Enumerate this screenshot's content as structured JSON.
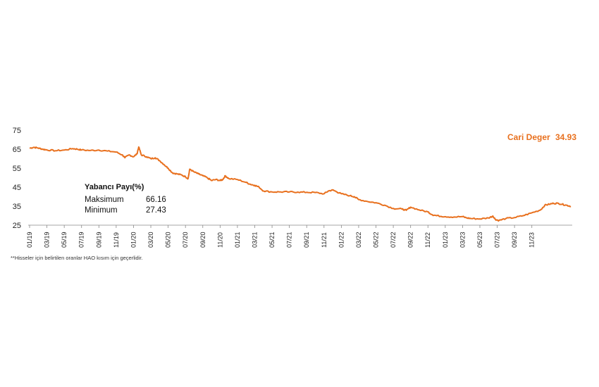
{
  "chart_data": {
    "type": "line",
    "title": "",
    "xlabel": "",
    "ylabel": "",
    "ylim": [
      25,
      75
    ],
    "yticks": [
      25,
      35,
      45,
      55,
      65,
      75
    ],
    "grid": false,
    "series": [
      {
        "name": "Yabancı Payı(%)",
        "color": "#e8701e",
        "points": [
          [
            0,
            65.5
          ],
          [
            0.5,
            66.0
          ],
          [
            1,
            65.6
          ],
          [
            1.5,
            65.0
          ],
          [
            2,
            64.6
          ],
          [
            3,
            64.2
          ],
          [
            4,
            64.5
          ],
          [
            5,
            65.3
          ],
          [
            5.5,
            65.0
          ],
          [
            6,
            64.6
          ],
          [
            7,
            64.3
          ],
          [
            8,
            64.5
          ],
          [
            9,
            64.0
          ],
          [
            10,
            63.5
          ],
          [
            10.7,
            62.0
          ],
          [
            11,
            60.5
          ],
          [
            11.5,
            62.0
          ],
          [
            12,
            61.0
          ],
          [
            12.4,
            62.5
          ],
          [
            12.6,
            66.16
          ],
          [
            12.9,
            62.0
          ],
          [
            13.5,
            61.0
          ],
          [
            14,
            60.0
          ],
          [
            14.5,
            60.5
          ],
          [
            15,
            59.0
          ],
          [
            15.5,
            57.0
          ],
          [
            16,
            55.0
          ],
          [
            16.5,
            52.5
          ],
          [
            17,
            52.0
          ],
          [
            17.5,
            51.5
          ],
          [
            18,
            50.5
          ],
          [
            18.3,
            49.5
          ],
          [
            18.5,
            54.5
          ],
          [
            19,
            53.0
          ],
          [
            19.5,
            52.0
          ],
          [
            20,
            51.0
          ],
          [
            20.5,
            50.0
          ],
          [
            21,
            48.5
          ],
          [
            21.5,
            49.0
          ],
          [
            22,
            48.5
          ],
          [
            22.3,
            49.0
          ],
          [
            22.6,
            51.0
          ],
          [
            23,
            49.5
          ],
          [
            24,
            49.0
          ],
          [
            25,
            47.5
          ],
          [
            25.5,
            46.5
          ],
          [
            26,
            46.0
          ],
          [
            26.5,
            45.0
          ],
          [
            27,
            43.0
          ],
          [
            28,
            42.5
          ],
          [
            29,
            42.5
          ],
          [
            30,
            42.5
          ],
          [
            31,
            42.4
          ],
          [
            32,
            42.3
          ],
          [
            33,
            42.2
          ],
          [
            34,
            41.5
          ],
          [
            34.5,
            43.0
          ],
          [
            35,
            43.5
          ],
          [
            35.5,
            42.5
          ],
          [
            36,
            41.5
          ],
          [
            37,
            40.5
          ],
          [
            37.5,
            40.0
          ],
          [
            38,
            38.5
          ],
          [
            39,
            37.5
          ],
          [
            40,
            36.8
          ],
          [
            41,
            35.5
          ],
          [
            42,
            33.8
          ],
          [
            43,
            33.5
          ],
          [
            43.5,
            32.8
          ],
          [
            44,
            34.5
          ],
          [
            45,
            33.0
          ],
          [
            46,
            32.0
          ],
          [
            46.5,
            30.5
          ],
          [
            47,
            30.0
          ],
          [
            48,
            29.5
          ],
          [
            49,
            29.3
          ],
          [
            50,
            29.5
          ],
          [
            50.5,
            28.8
          ],
          [
            51,
            28.5
          ],
          [
            52,
            28.3
          ],
          [
            53,
            28.8
          ],
          [
            53.5,
            29.8
          ],
          [
            53.8,
            28.0
          ],
          [
            54.2,
            27.43
          ],
          [
            55,
            28.5
          ],
          [
            56,
            29.0
          ],
          [
            57,
            30.0
          ],
          [
            58,
            31.5
          ],
          [
            59,
            33.0
          ],
          [
            59.5,
            35.5
          ],
          [
            60,
            36.0
          ],
          [
            60.5,
            36.5
          ],
          [
            61,
            36.5
          ],
          [
            61.5,
            36.0
          ],
          [
            62,
            35.5
          ],
          [
            62.5,
            34.93
          ]
        ]
      }
    ],
    "x_domain": [
      0,
      62.5
    ],
    "x_ticks": [
      {
        "label": "01/19",
        "x": 0
      },
      {
        "label": "03/19",
        "x": 2
      },
      {
        "label": "05/19",
        "x": 4
      },
      {
        "label": "07/19",
        "x": 6
      },
      {
        "label": "09/19",
        "x": 8
      },
      {
        "label": "11/19",
        "x": 10
      },
      {
        "label": "01/20",
        "x": 12
      },
      {
        "label": "03/20",
        "x": 14
      },
      {
        "label": "05/20",
        "x": 16
      },
      {
        "label": "07/20",
        "x": 18
      },
      {
        "label": "09/20",
        "x": 20
      },
      {
        "label": "11/20",
        "x": 22
      },
      {
        "label": "01/21",
        "x": 24
      },
      {
        "label": "03/21",
        "x": 26
      },
      {
        "label": "05/21",
        "x": 28
      },
      {
        "label": "07/21",
        "x": 30
      },
      {
        "label": "09/21",
        "x": 32
      },
      {
        "label": "11/21",
        "x": 34
      },
      {
        "label": "01/22",
        "x": 36
      },
      {
        "label": "03/22",
        "x": 38
      },
      {
        "label": "05/22",
        "x": 40
      },
      {
        "label": "07/22",
        "x": 42
      },
      {
        "label": "09/22",
        "x": 44
      },
      {
        "label": "11/22",
        "x": 46
      },
      {
        "label": "01/23",
        "x": 48
      },
      {
        "label": "03/23",
        "x": 50
      },
      {
        "label": "05/23",
        "x": 52
      },
      {
        "label": "07/23",
        "x": 54
      },
      {
        "label": "09/23",
        "x": 56
      },
      {
        "label": "11/23",
        "x": 58
      }
    ],
    "x_ticks_note": "x values are months since 01/19"
  },
  "info_box": {
    "title": "Yabancı Payı(%)",
    "max_label": "Maksimum",
    "max_value": "66.16",
    "min_label": "Minimum",
    "min_value": "27.43"
  },
  "current": {
    "label": "Cari Deger",
    "value": "34.93",
    "color": "#e8701e"
  },
  "footnote": "**Hisseler için belirtilen oranlar HAO kısım için geçerlidir."
}
